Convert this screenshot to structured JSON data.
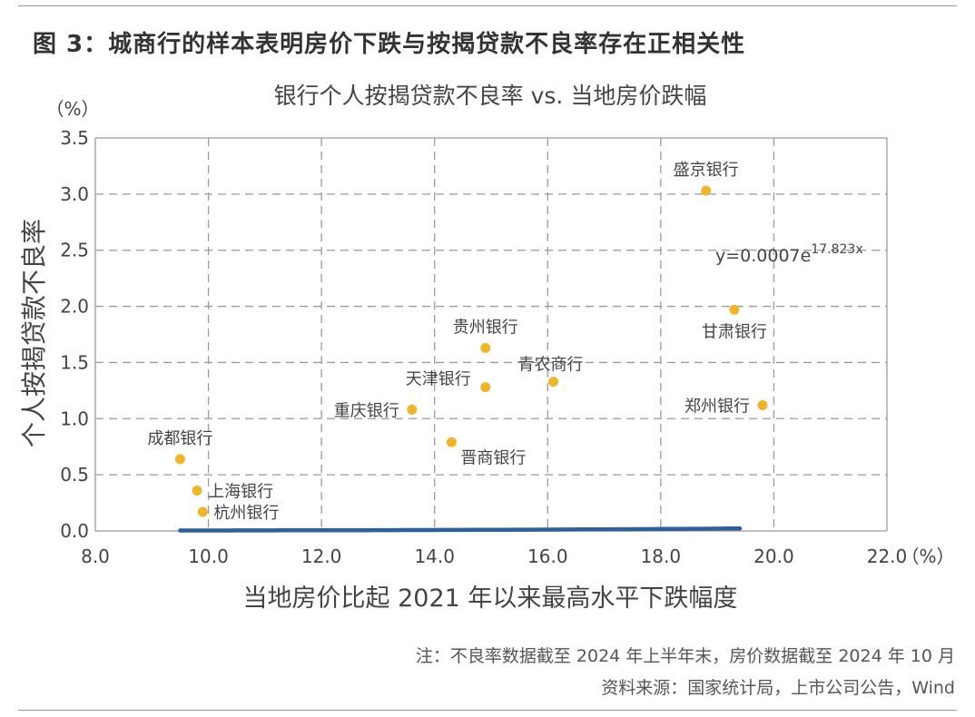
{
  "figure_title": "图 3：城商行的样本表明房价下跌与按揭贷款不良率存在正相关性",
  "notes": {
    "note_line": "注：不良率数据截至 2024 年上半年末，房价数据截至 2024 年 10 月",
    "source_line": "资料来源：国家统计局，上市公司公告，Wind"
  },
  "colors": {
    "points": "#f0b429",
    "trend": "#2e5f9e",
    "grid": "#9a9a9a",
    "text": "#444444"
  },
  "chart_data": {
    "type": "scatter",
    "title": "银行个人按揭贷款不良率 vs. 当地房价跌幅",
    "xlabel": "当地房价比起 2021 年以来最高水平下跌幅度",
    "ylabel": "个人按揭贷款不良率",
    "x_unit": "（%）",
    "y_unit": "（%）",
    "xlim": [
      8.0,
      22.0
    ],
    "ylim": [
      0.0,
      3.5
    ],
    "x_ticks": [
      "8.0",
      "10.0",
      "12.0",
      "14.0",
      "16.0",
      "18.0",
      "20.0",
      "22.0"
    ],
    "y_ticks": [
      "0.0",
      "0.5",
      "1.0",
      "1.5",
      "2.0",
      "2.5",
      "3.0",
      "3.5"
    ],
    "x_tick_values": [
      8,
      10,
      12,
      14,
      16,
      18,
      20,
      22
    ],
    "y_tick_values": [
      0,
      0.5,
      1.0,
      1.5,
      2.0,
      2.5,
      3.0,
      3.5
    ],
    "grid": true,
    "points": [
      {
        "label": "成都银行",
        "x": 9.5,
        "y": 0.64,
        "label_pos": "above"
      },
      {
        "label": "上海银行",
        "x": 9.8,
        "y": 0.36,
        "label_pos": "right"
      },
      {
        "label": "杭州银行",
        "x": 9.9,
        "y": 0.17,
        "label_pos": "right"
      },
      {
        "label": "重庆银行",
        "x": 13.6,
        "y": 1.08,
        "label_pos": "left"
      },
      {
        "label": "晋商银行",
        "x": 14.3,
        "y": 0.79,
        "label_pos": "below-right"
      },
      {
        "label": "天津银行",
        "x": 14.9,
        "y": 1.28,
        "label_pos": "left-up"
      },
      {
        "label": "贵州银行",
        "x": 14.9,
        "y": 1.63,
        "label_pos": "above"
      },
      {
        "label": "青农商行",
        "x": 16.1,
        "y": 1.33,
        "label_pos": "above-left"
      },
      {
        "label": "盛京银行",
        "x": 18.8,
        "y": 3.03,
        "label_pos": "above"
      },
      {
        "label": "甘肃银行",
        "x": 19.3,
        "y": 1.97,
        "label_pos": "below"
      },
      {
        "label": "郑州银行",
        "x": 19.8,
        "y": 1.12,
        "label_pos": "left"
      }
    ],
    "trendline": {
      "type": "exponential",
      "a": 0.0007,
      "b": 17.823,
      "x_from": 9.5,
      "x_to": 19.4,
      "equation_base": "y=0.0007e",
      "equation_exp": "17.823x"
    }
  }
}
